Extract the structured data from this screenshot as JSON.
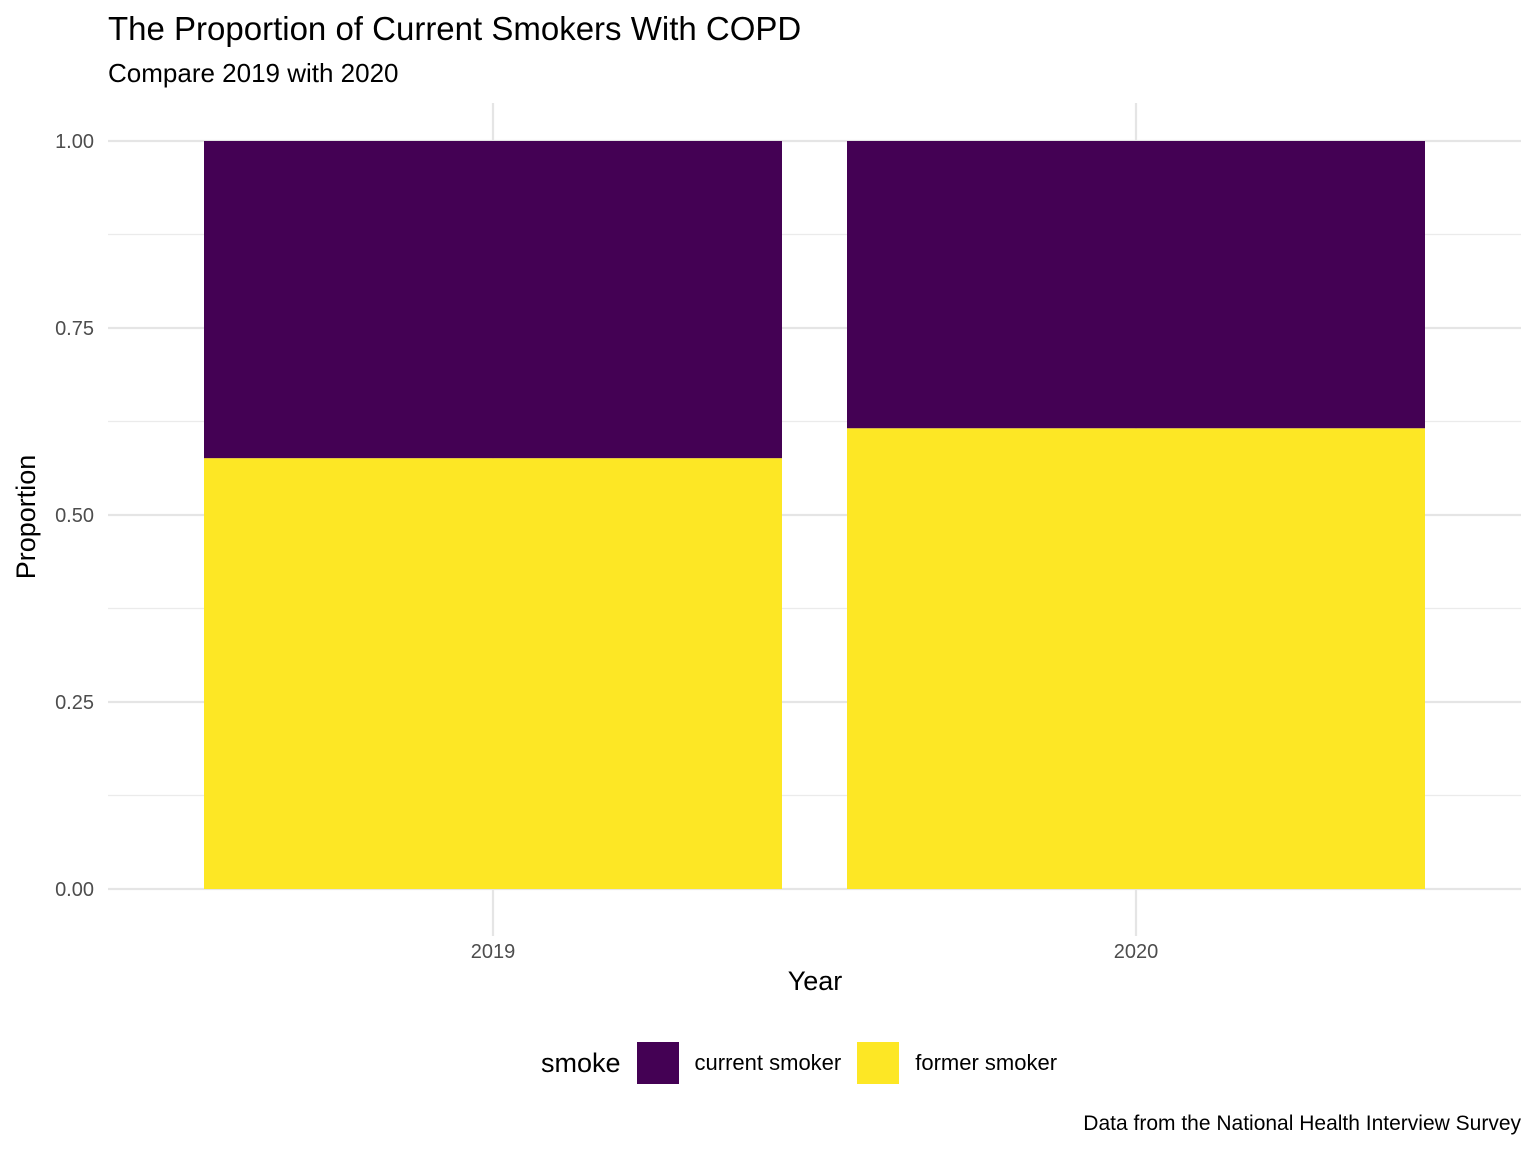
{
  "chart_data": {
    "type": "bar",
    "stacked": true,
    "title": "The Proportion of Current Smokers With COPD",
    "subtitle": "Compare 2019 with 2020",
    "xlabel": "Year",
    "ylabel": "Proportion",
    "categories": [
      "2019",
      "2020"
    ],
    "ylim": [
      0,
      1
    ],
    "yticks": [
      "0.00",
      "0.25",
      "0.50",
      "0.75",
      "1.00"
    ],
    "series": [
      {
        "name": "former smoker",
        "color": "#FDE725",
        "values": [
          0.576,
          0.616
        ]
      },
      {
        "name": "current smoker",
        "color": "#440154",
        "values": [
          0.424,
          0.384
        ]
      }
    ],
    "legend": {
      "title": "smoke",
      "position": "bottom",
      "entries": [
        {
          "label": "current smoker",
          "color": "#440154"
        },
        {
          "label": "former smoker",
          "color": "#FDE725"
        }
      ]
    },
    "grid": true,
    "caption": "Data from the National Health Interview Survey"
  }
}
